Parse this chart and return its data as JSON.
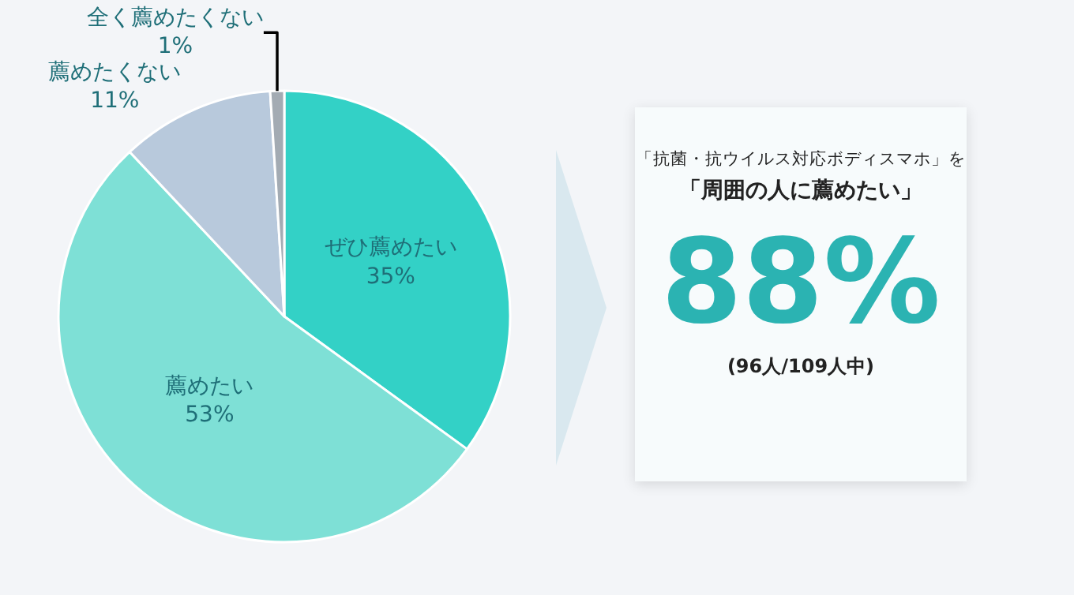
{
  "chart_data": [
    {
      "type": "pie",
      "categories": [
        "ぜひ薦めたい",
        "薦めたい",
        "薦めたくない",
        "全く薦めたくない"
      ],
      "values": [
        35,
        53,
        11,
        1
      ],
      "value_labels": [
        "35%",
        "53%",
        "11%",
        "1%"
      ],
      "colors": [
        "#33d1c6",
        "#7ee0d6",
        "#b8c9dc",
        "#a3abb3"
      ]
    },
    {
      "type": "other",
      "title": "「抗菌・抗ウイルス対応ボディスマホ」を",
      "subtitle": "「周囲の人に薦めたい」",
      "annotations": [
        "88%",
        "(96人/109人中)"
      ]
    }
  ]
}
